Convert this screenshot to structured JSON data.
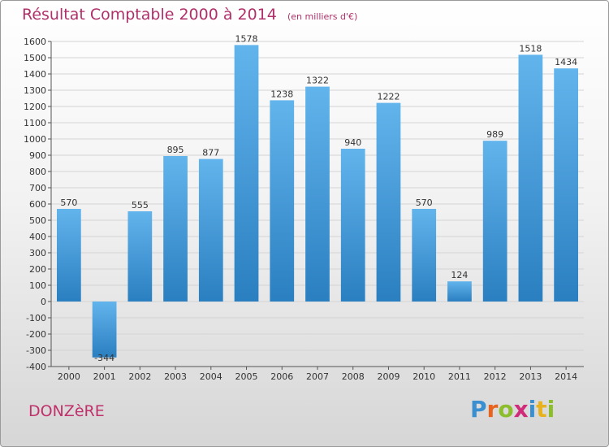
{
  "title": "Résultat Comptable 2000 à 2014",
  "subtitle": "(en milliers d'€)",
  "commune": "DONZèRE",
  "brand": {
    "letters": [
      "P",
      "r",
      "o",
      "x",
      "i",
      "t",
      "i"
    ],
    "colors": [
      "#3a8fd0",
      "#e8641e",
      "#8cbd2c",
      "#d02a7a",
      "#3a8fd0",
      "#e8b21e",
      "#8cbd2c"
    ]
  },
  "colors": {
    "bar_top": "#62b4ec",
    "bar_bottom": "#2a7fc0",
    "title": "#b0306a"
  },
  "chart_data": {
    "type": "bar",
    "categories": [
      "2000",
      "2001",
      "2002",
      "2003",
      "2004",
      "2005",
      "2006",
      "2007",
      "2008",
      "2009",
      "2010",
      "2011",
      "2012",
      "2013",
      "2014"
    ],
    "values": [
      570,
      -344,
      555,
      895,
      877,
      1578,
      1238,
      1322,
      940,
      1222,
      570,
      124,
      989,
      1518,
      1434
    ],
    "ylim": [
      -400,
      1600
    ],
    "ytick_step": 100,
    "grid": "horizontal"
  }
}
